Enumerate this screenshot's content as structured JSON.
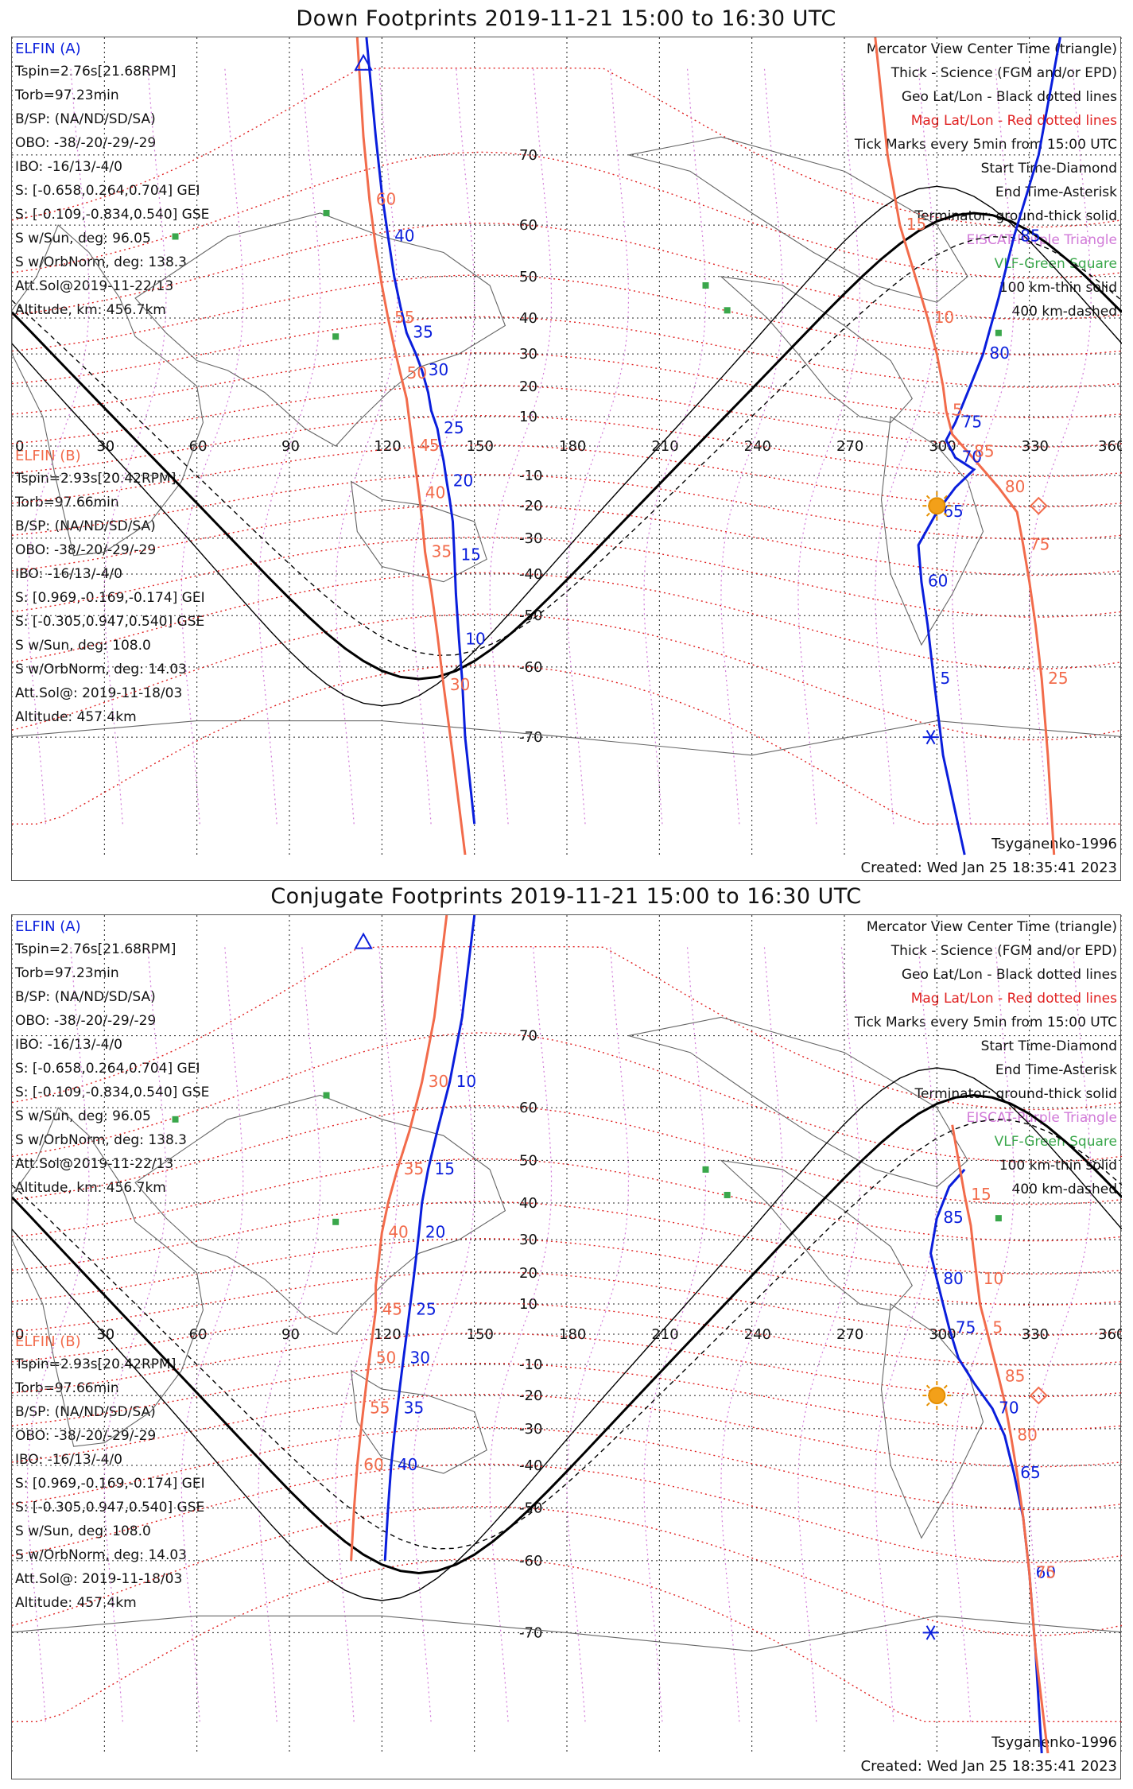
{
  "top": {
    "title": "Down Footprints 2019-11-21 15:00 to 16:30 UTC",
    "a_header": "ELFIN (A)",
    "a_lines": [
      "Tspin=2.76s[21.68RPM]",
      "Torb=97.23min",
      "B/SP: (NA/ND/SD/SA)",
      "OBO: -38/-20/-29/-29",
      "IBO: -16/13/-4/0",
      "S: [-0.658,0.264,0.704] GEI",
      "S: [-0.109,-0.834,0.540] GSE",
      "S w/Sun, deg: 96.05",
      "S w/OrbNorm, deg: 138.3",
      "Att.Sol@2019-11-22/13",
      "Altitude, km: 456.7km"
    ],
    "b_header": "ELFIN (B)",
    "b_lines": [
      "Tspin=2.93s[20.42RPM]",
      "Torb=97.66min",
      "B/SP: (NA/ND/SD/SA)",
      "OBO: -38/-20/-29/-29",
      "IBO: -16/13/-4/0",
      "S: [0.969,-0.169,-0.174] GEI",
      "S: [-0.305,0.947,0.540] GSE",
      "S w/Sun, deg: 108.0",
      "S w/OrbNorm, deg: 14.03",
      "Att.Sol@: 2019-11-18/03",
      "Altitude: 457.4km"
    ],
    "legend": [
      "Mercator View Center Time (triangle)",
      "Thick - Science (FGM and/or EPD)",
      "Geo Lat/Lon - Black dotted lines",
      "Mag Lat/Lon - Red dotted lines",
      "Tick Marks every 5min from 15:00 UTC",
      "Start Time-Diamond",
      "End Time-Asterisk",
      "Terminator: ground-thick solid",
      "EISCAT-Purple Triangle",
      "VLF-Green Square",
      "100 km-thin solid",
      "400 km-dashed"
    ],
    "model": "Tsyganenko-1996",
    "created": "Created: Wed Jan 25 18:35:41 2023"
  },
  "bottom": {
    "title": "Conjugate Footprints 2019-11-21 15:00 to 16:30 UTC",
    "a_header": "ELFIN (A)",
    "a_lines": [
      "Tspin=2.76s[21.68RPM]",
      "Torb=97.23min",
      "B/SP: (NA/ND/SD/SA)",
      "OBO: -38/-20/-29/-29",
      "IBO: -16/13/-4/0",
      "S: [-0.658,0.264,0.704] GEI",
      "S: [-0.109,-0.834,0.540] GSE",
      "S w/Sun, deg: 96.05",
      "S w/OrbNorm, deg: 138.3",
      "Att.Sol@2019-11-22/13",
      "Altitude, km: 456.7km"
    ],
    "b_header": "ELFIN (B)",
    "b_lines": [
      "Tspin=2.93s[20.42RPM]",
      "Torb=97.66min",
      "B/SP: (NA/ND/SD/SA)",
      "OBO: -38/-20/-29/-29",
      "IBO: -16/13/-4/0",
      "S: [0.969,-0.169,-0.174] GEI",
      "S: [-0.305,0.947,0.540] GSE",
      "S w/Sun, deg: 108.0",
      "S w/OrbNorm, deg: 14.03",
      "Att.Sol@: 2019-11-18/03",
      "Altitude: 457.4km"
    ],
    "legend": [
      "Mercator View Center Time (triangle)",
      "Thick - Science (FGM and/or EPD)",
      "Geo Lat/Lon - Black dotted lines",
      "Mag Lat/Lon - Red dotted lines",
      "Tick Marks every 5min from 15:00 UTC",
      "Start Time-Diamond",
      "End Time-Asterisk",
      "Terminator: ground-thick solid",
      "EISCAT-Purple Triangle",
      "VLF-Green Square",
      "100 km-thin solid",
      "400 km-dashed"
    ],
    "model": "Tsyganenko-1996",
    "created": "Created: Wed Jan 25 18:35:41 2023"
  },
  "map": {
    "lon_ticks": [
      "0",
      "30",
      "60",
      "90",
      "120",
      "150",
      "180",
      "210",
      "240",
      "270",
      "300",
      "330",
      "360"
    ],
    "lat_ticks": [
      "70",
      "60",
      "50",
      "40",
      "30",
      "20",
      "10",
      "-10",
      "-20",
      "-30",
      "-40",
      "-50",
      "-60",
      "-70"
    ],
    "colors": {
      "elfin_a": "#0a1edc",
      "elfin_b": "#f26b4b",
      "mag_grid": "#e02020",
      "geo_grid": "#222222",
      "eiscat": "#d17ad8",
      "vlf": "#3aa74b",
      "sun": "#f3a019"
    }
  },
  "chart_data": {
    "type": "map",
    "projection": "mercator",
    "lon_range": [
      0,
      360
    ],
    "lat_range": [
      -80,
      80
    ],
    "panels": [
      {
        "name": "Down Footprints",
        "elfin_a_track_lonlat": [
          [
            115,
            80
          ],
          [
            118,
            72
          ],
          [
            120,
            65
          ],
          [
            122,
            58
          ],
          [
            124,
            50
          ],
          [
            126,
            43
          ],
          [
            128,
            36
          ],
          [
            131,
            30
          ],
          [
            133,
            25
          ],
          [
            135,
            18
          ],
          [
            136,
            12
          ],
          [
            138,
            6
          ],
          [
            139,
            0
          ],
          [
            140,
            -5
          ],
          [
            141,
            -12
          ],
          [
            142,
            -18
          ],
          [
            143,
            -25
          ],
          [
            143.5,
            -35
          ],
          [
            144,
            -45
          ],
          [
            145,
            -55
          ],
          [
            146,
            -62
          ],
          [
            147,
            -70
          ],
          [
            150,
            -78
          ]
        ],
        "elfin_a_second_track_lonlat": [
          [
            309,
            -80
          ],
          [
            302,
            -72
          ],
          [
            299,
            -62
          ],
          [
            297,
            -52
          ],
          [
            295,
            -42
          ],
          [
            294,
            -32
          ],
          [
            300,
            -22
          ],
          [
            306,
            -14
          ],
          [
            312,
            -8
          ],
          [
            306,
            -4
          ],
          [
            303,
            2
          ],
          [
            306,
            8
          ],
          [
            310,
            18
          ],
          [
            315,
            30
          ],
          [
            320,
            45
          ],
          [
            325,
            58
          ],
          [
            333,
            70
          ],
          [
            340,
            80
          ]
        ],
        "elfin_b_track_lonlat": [
          [
            112,
            80
          ],
          [
            114,
            72
          ],
          [
            116,
            64
          ],
          [
            118,
            56
          ],
          [
            120,
            48
          ],
          [
            122,
            40
          ],
          [
            124,
            32
          ],
          [
            126,
            24
          ],
          [
            128,
            16
          ],
          [
            129,
            8
          ],
          [
            130,
            0
          ],
          [
            131,
            -8
          ],
          [
            132,
            -16
          ],
          [
            133,
            -24
          ],
          [
            134,
            -34
          ],
          [
            136,
            -44
          ],
          [
            138,
            -54
          ],
          [
            140,
            -63
          ],
          [
            143,
            -72
          ],
          [
            147,
            -80
          ]
        ],
        "elfin_b_second_track_lonlat": [
          [
            338,
            -80
          ],
          [
            336,
            -72
          ],
          [
            334,
            -62
          ],
          [
            332,
            -52
          ],
          [
            330,
            -42
          ],
          [
            328,
            -32
          ],
          [
            326,
            -22
          ],
          [
            320,
            -14
          ],
          [
            315,
            -8
          ],
          [
            310,
            -2
          ],
          [
            305,
            4
          ],
          [
            303,
            12
          ],
          [
            302,
            20
          ],
          [
            300,
            30
          ],
          [
            297,
            40
          ],
          [
            293,
            50
          ],
          [
            288,
            60
          ],
          [
            284,
            70
          ],
          [
            280,
            80
          ]
        ],
        "a_tick_labels": [
          "40",
          "35",
          "30",
          "25",
          "20",
          "15",
          "10",
          "5",
          "60",
          "65",
          "70",
          "75",
          "80",
          "85"
        ],
        "b_tick_labels": [
          "60",
          "55",
          "50",
          "45",
          "40",
          "35",
          "30",
          "25",
          "75",
          "80",
          "85",
          "5",
          "10",
          "15"
        ]
      },
      {
        "name": "Conjugate Footprints",
        "elfin_a_track_lonlat": [
          [
            150,
            80
          ],
          [
            146,
            72
          ],
          [
            142,
            64
          ],
          [
            138,
            56
          ],
          [
            135,
            48
          ],
          [
            133,
            40
          ],
          [
            132,
            32
          ],
          [
            131,
            24
          ],
          [
            130,
            16
          ],
          [
            129,
            8
          ],
          [
            128,
            0
          ],
          [
            127,
            -8
          ],
          [
            126,
            -16
          ],
          [
            125,
            -24
          ],
          [
            124,
            -32
          ],
          [
            123,
            -40
          ],
          [
            122,
            -50
          ],
          [
            121,
            -60
          ]
        ],
        "elfin_a_second_track_lonlat": [
          [
            309,
            48
          ],
          [
            304,
            44
          ],
          [
            300,
            36
          ],
          [
            298,
            26
          ],
          [
            300,
            18
          ],
          [
            302,
            10
          ],
          [
            304,
            2
          ],
          [
            307,
            -8
          ],
          [
            312,
            -16
          ],
          [
            318,
            -24
          ],
          [
            322,
            -32
          ],
          [
            325,
            -42
          ],
          [
            328,
            -52
          ],
          [
            330,
            -62
          ],
          [
            332,
            -72
          ],
          [
            334,
            -80
          ]
        ],
        "elfin_b_track_lonlat": [
          [
            141,
            80
          ],
          [
            137,
            72
          ],
          [
            133,
            64
          ],
          [
            129,
            56
          ],
          [
            125,
            48
          ],
          [
            122,
            40
          ],
          [
            120,
            32
          ],
          [
            119,
            24
          ],
          [
            118,
            16
          ],
          [
            118,
            8
          ],
          [
            117,
            0
          ],
          [
            116,
            -8
          ],
          [
            115,
            -16
          ],
          [
            114,
            -24
          ],
          [
            113,
            -32
          ],
          [
            112,
            -40
          ],
          [
            111,
            -50
          ],
          [
            110,
            -60
          ]
        ],
        "elfin_b_second_track_lonlat": [
          [
            305,
            57
          ],
          [
            307,
            50
          ],
          [
            309,
            42
          ],
          [
            311,
            34
          ],
          [
            312,
            26
          ],
          [
            313,
            18
          ],
          [
            314,
            10
          ],
          [
            316,
            2
          ],
          [
            318,
            -6
          ],
          [
            320,
            -14
          ],
          [
            322,
            -22
          ],
          [
            324,
            -32
          ],
          [
            326,
            -42
          ],
          [
            328,
            -52
          ],
          [
            330,
            -62
          ],
          [
            332,
            -72
          ],
          [
            336,
            -80
          ]
        ],
        "a_tick_labels": [
          "10",
          "15",
          "20",
          "25",
          "30",
          "35",
          "40",
          "85",
          "80",
          "75",
          "70",
          "65",
          "60"
        ],
        "b_tick_labels": [
          "30",
          "35",
          "40",
          "45",
          "50",
          "55",
          "60",
          "15",
          "10",
          "5",
          "85",
          "80",
          "75"
        ]
      }
    ]
  }
}
